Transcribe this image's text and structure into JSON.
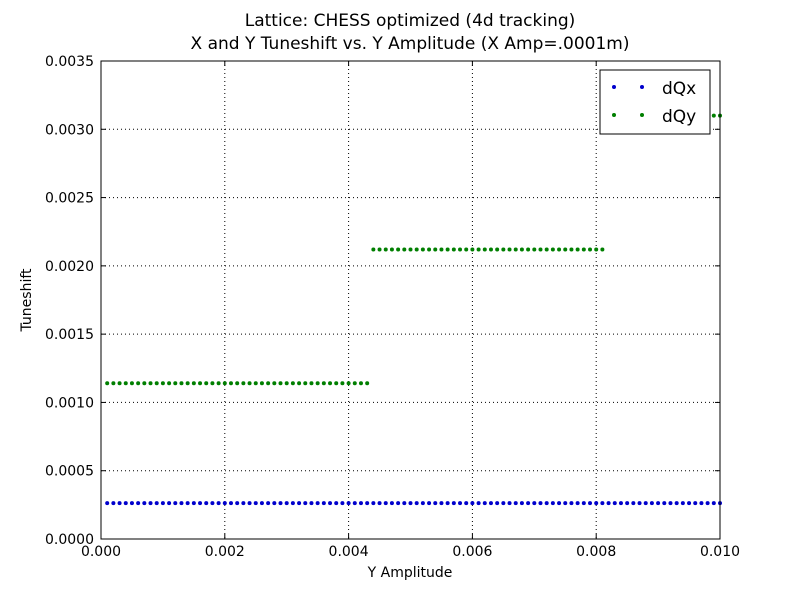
{
  "chart_data": {
    "type": "scatter",
    "title": "Lattice: CHESS optimized (4d tracking)",
    "subtitle": "X and Y Tuneshift vs. Y Amplitude (X Amp=.0001m)",
    "xlabel": "Y Amplitude",
    "ylabel": "Tuneshift",
    "xlim": [
      0,
      0.01
    ],
    "ylim": [
      0,
      0.0035
    ],
    "xticks": [
      "0.000",
      "0.002",
      "0.004",
      "0.006",
      "0.008",
      "0.010"
    ],
    "yticks": [
      "0.0000",
      "0.0005",
      "0.0010",
      "0.0015",
      "0.0020",
      "0.0025",
      "0.0030",
      "0.0035"
    ],
    "grid": true,
    "legend_position": "top-right",
    "series": [
      {
        "name": "dQx",
        "color": "#0000cc",
        "segments": [
          {
            "x_start": 0.0001,
            "x_end": 0.01,
            "x_step": 0.0001,
            "y": 0.000263
          }
        ]
      },
      {
        "name": "dQy",
        "color": "#007f00",
        "segments": [
          {
            "x_start": 0.0001,
            "x_end": 0.0043,
            "x_step": 0.0001,
            "y": 0.00114
          },
          {
            "x_start": 0.0044,
            "x_end": 0.0081,
            "x_step": 0.0001,
            "y": 0.00212
          },
          {
            "x_start": 0.0099,
            "x_end": 0.01,
            "x_step": 0.0001,
            "y": 0.0031
          }
        ]
      }
    ]
  }
}
